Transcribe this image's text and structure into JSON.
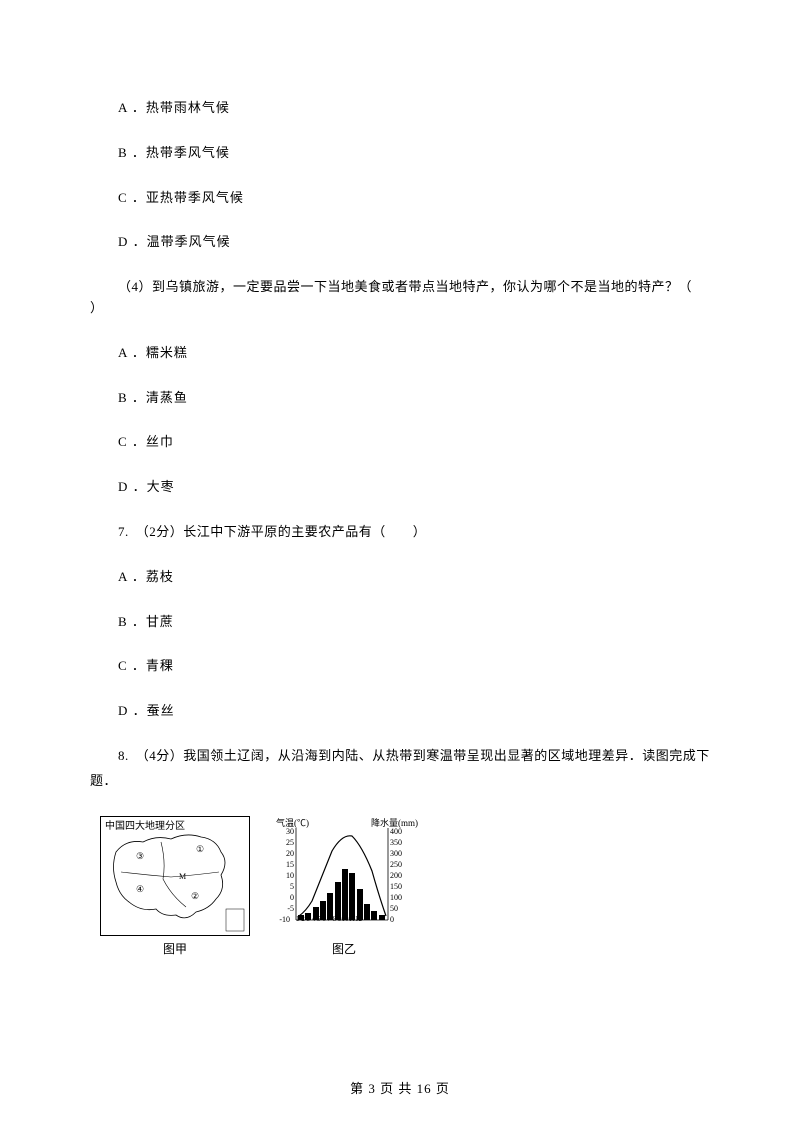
{
  "q1_options": {
    "A": "A ．热带雨林气候",
    "B": "B ．热带季风气候",
    "C": "C ．亚热带季风气候",
    "D": "D ．温带季风气候"
  },
  "q1_sub4": "（4）到乌镇旅游，一定要品尝一下当地美食或者带点当地特产，你认为哪个不是当地的特产？（　",
  "q1_sub4_close": "）",
  "q1_sub4_options": {
    "A": "A ．糯米糕",
    "B": "B ．清蒸鱼",
    "C": "C ．丝巾",
    "D": "D ．大枣"
  },
  "q7": "7.　（2分）长江中下游平原的主要农产品有（　　）",
  "q7_options": {
    "A": "A ．荔枝",
    "B": "B ．甘蔗",
    "C": "C ．青稞",
    "D": "D ．蚕丝"
  },
  "q8": "8.　（4分）我国领土辽阔，从沿海到内陆、从热带到寒温带呈现出显著的区域地理差异．读图完成下",
  "q8_line2": "题．",
  "map": {
    "title": "中国四大地理分区",
    "caption": "图甲",
    "region_labels": [
      "①",
      "②",
      "③",
      "④"
    ],
    "marker": "M"
  },
  "chart": {
    "type": "climate-chart",
    "caption": "图乙",
    "left_axis_label": "气温(℃)",
    "right_axis_label": "降水量(mm)",
    "temp_ticks": [
      -10,
      -5,
      0,
      5,
      10,
      15,
      20,
      25,
      30
    ],
    "precip_ticks": [
      0,
      50,
      100,
      150,
      200,
      250,
      300,
      350,
      400
    ],
    "months": [
      1,
      2,
      3,
      4,
      5,
      6,
      7,
      8,
      9,
      10,
      11,
      12
    ],
    "precip_values": [
      20,
      30,
      55,
      85,
      120,
      170,
      230,
      210,
      140,
      70,
      40,
      20
    ],
    "temp_values": [
      -5,
      -2,
      5,
      13,
      20,
      25,
      28,
      27,
      22,
      14,
      5,
      -3
    ],
    "bar_color": "#000000",
    "curve_color": "#000000",
    "background_color": "#ffffff"
  },
  "footer": "第 3 页 共 16 页"
}
